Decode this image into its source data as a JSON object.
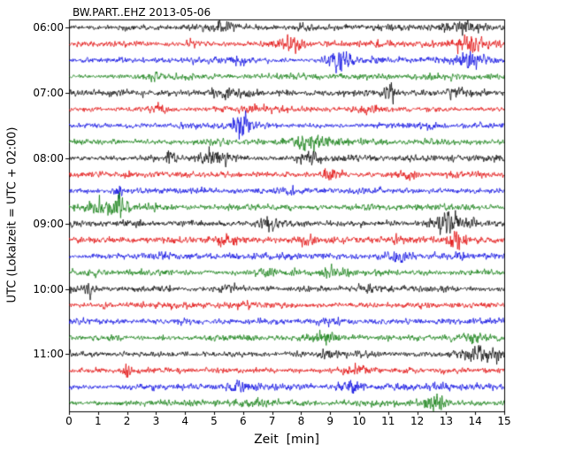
{
  "station_id": "BW.PART..EHZ",
  "date": "2013-05-06",
  "chart_data": {
    "type": "line",
    "subtype": "seismogram-dayplot",
    "title": "BW.PART..EHZ 2013-05-06",
    "xlabel": "Zeit  [min]",
    "ylabel": "UTC (Lokalzeit = UTC + 02:00)",
    "xlim": [
      0,
      15
    ],
    "x_ticks": [
      0,
      1,
      2,
      3,
      4,
      5,
      6,
      7,
      8,
      9,
      10,
      11,
      12,
      13,
      14,
      15
    ],
    "y_tick_labels": [
      "06:00",
      "07:00",
      "08:00",
      "09:00",
      "10:00",
      "11:00"
    ],
    "minutes_per_row": 15,
    "rows_per_hour": 4,
    "grid": false,
    "legend": "none",
    "colors": {
      "black": "#000000",
      "red": "#e00000",
      "blue": "#0000e0",
      "green": "#0a7a0a"
    },
    "traces": [
      {
        "start": "06:00",
        "color": "black",
        "events": [
          {
            "m": 2.1,
            "a": 0.9,
            "w": 0.15
          },
          {
            "m": 5.3,
            "a": 1.6,
            "w": 0.3
          },
          {
            "m": 8.1,
            "a": 1.0,
            "w": 0.25
          },
          {
            "m": 13.6,
            "a": 2.2,
            "w": 0.45
          }
        ]
      },
      {
        "start": "06:15",
        "color": "red",
        "events": [
          {
            "m": 4.2,
            "a": 0.8,
            "w": 0.2
          },
          {
            "m": 7.7,
            "a": 1.8,
            "w": 0.3
          },
          {
            "m": 13.8,
            "a": 2.8,
            "w": 0.35
          }
        ]
      },
      {
        "start": "06:30",
        "color": "blue",
        "events": [
          {
            "m": 6.0,
            "a": 0.8,
            "w": 0.2
          },
          {
            "m": 9.3,
            "a": 3.2,
            "w": 0.3
          },
          {
            "m": 13.9,
            "a": 2.4,
            "w": 0.4
          }
        ]
      },
      {
        "start": "06:45",
        "color": "green",
        "events": [
          {
            "m": 2.9,
            "a": 1.4,
            "w": 0.12
          },
          {
            "m": 8.0,
            "a": 0.6,
            "w": 0.3
          }
        ]
      },
      {
        "start": "07:00",
        "color": "black",
        "events": [
          {
            "m": 5.6,
            "a": 2.0,
            "w": 0.5
          },
          {
            "m": 11.1,
            "a": 3.8,
            "w": 0.12
          },
          {
            "m": 13.4,
            "a": 1.0,
            "w": 0.2
          }
        ]
      },
      {
        "start": "07:15",
        "color": "red",
        "events": [
          {
            "m": 3.1,
            "a": 0.9,
            "w": 0.2
          },
          {
            "m": 6.5,
            "a": 0.8,
            "w": 0.25
          },
          {
            "m": 10.4,
            "a": 1.0,
            "w": 0.3
          }
        ]
      },
      {
        "start": "07:30",
        "color": "blue",
        "events": [
          {
            "m": 5.95,
            "a": 3.4,
            "w": 0.25
          },
          {
            "m": 12.6,
            "a": 0.9,
            "w": 0.2
          }
        ]
      },
      {
        "start": "07:45",
        "color": "green",
        "events": [
          {
            "m": 5.0,
            "a": 0.7,
            "w": 0.3
          },
          {
            "m": 8.3,
            "a": 1.6,
            "w": 0.5
          }
        ]
      },
      {
        "start": "08:00",
        "color": "black",
        "events": [
          {
            "m": 3.5,
            "a": 2.2,
            "w": 0.1
          },
          {
            "m": 5.1,
            "a": 2.6,
            "w": 0.5
          },
          {
            "m": 8.3,
            "a": 1.2,
            "w": 0.25
          }
        ]
      },
      {
        "start": "08:15",
        "color": "red",
        "events": [
          {
            "m": 2.0,
            "a": 0.6,
            "w": 0.2
          },
          {
            "m": 9.1,
            "a": 2.6,
            "w": 0.25
          },
          {
            "m": 11.6,
            "a": 1.2,
            "w": 0.2
          }
        ]
      },
      {
        "start": "08:30",
        "color": "blue",
        "events": [
          {
            "m": 1.7,
            "a": 2.2,
            "w": 0.08
          },
          {
            "m": 7.5,
            "a": 0.5,
            "w": 0.3
          }
        ]
      },
      {
        "start": "08:45",
        "color": "green",
        "events": [
          {
            "m": 1.3,
            "a": 2.8,
            "w": 0.5
          },
          {
            "m": 1.75,
            "a": 3.5,
            "w": 0.1
          },
          {
            "m": 2.9,
            "a": 1.0,
            "w": 0.2
          }
        ]
      },
      {
        "start": "09:00",
        "color": "black",
        "events": [
          {
            "m": 2.3,
            "a": 0.8,
            "w": 0.2
          },
          {
            "m": 6.8,
            "a": 1.6,
            "w": 0.3
          },
          {
            "m": 13.1,
            "a": 2.6,
            "w": 0.45
          }
        ]
      },
      {
        "start": "09:15",
        "color": "red",
        "events": [
          {
            "m": 5.5,
            "a": 1.6,
            "w": 0.25
          },
          {
            "m": 8.0,
            "a": 1.2,
            "w": 0.3
          },
          {
            "m": 11.3,
            "a": 0.7,
            "w": 0.2
          },
          {
            "m": 13.35,
            "a": 3.6,
            "w": 0.2
          }
        ]
      },
      {
        "start": "09:30",
        "color": "blue",
        "events": [
          {
            "m": 3.2,
            "a": 0.6,
            "w": 0.25
          },
          {
            "m": 11.4,
            "a": 1.6,
            "w": 0.3
          },
          {
            "m": 13.5,
            "a": 2.0,
            "w": 0.1
          }
        ]
      },
      {
        "start": "09:45",
        "color": "green",
        "events": [
          {
            "m": 0.9,
            "a": 0.7,
            "w": 0.2
          },
          {
            "m": 6.9,
            "a": 0.9,
            "w": 0.3
          },
          {
            "m": 9.1,
            "a": 0.8,
            "w": 0.3
          }
        ]
      },
      {
        "start": "10:00",
        "color": "black",
        "events": [
          {
            "m": 0.7,
            "a": 1.8,
            "w": 0.12
          },
          {
            "m": 5.5,
            "a": 1.4,
            "w": 0.3
          },
          {
            "m": 10.2,
            "a": 1.5,
            "w": 0.25
          },
          {
            "m": 13.0,
            "a": 0.8,
            "w": 0.3
          }
        ]
      },
      {
        "start": "10:15",
        "color": "red",
        "events": [
          {
            "m": 1.2,
            "a": 2.0,
            "w": 0.08
          },
          {
            "m": 6.0,
            "a": 0.7,
            "w": 0.3
          },
          {
            "m": 12.0,
            "a": 0.7,
            "w": 0.3
          }
        ]
      },
      {
        "start": "10:30",
        "color": "blue",
        "events": [
          {
            "m": 4.0,
            "a": 0.6,
            "w": 0.3
          },
          {
            "m": 9.0,
            "a": 0.7,
            "w": 0.3
          }
        ]
      },
      {
        "start": "10:45",
        "color": "green",
        "events": [
          {
            "m": 1.5,
            "a": 0.7,
            "w": 0.2
          },
          {
            "m": 8.7,
            "a": 1.8,
            "w": 0.4
          },
          {
            "m": 13.9,
            "a": 0.8,
            "w": 0.3
          }
        ]
      },
      {
        "start": "11:00",
        "color": "black",
        "events": [
          {
            "m": 9.0,
            "a": 0.7,
            "w": 0.3
          },
          {
            "m": 14.3,
            "a": 2.8,
            "w": 0.5
          }
        ]
      },
      {
        "start": "11:15",
        "color": "red",
        "events": [
          {
            "m": 2.0,
            "a": 2.4,
            "w": 0.1
          },
          {
            "m": 9.9,
            "a": 1.4,
            "w": 0.3
          },
          {
            "m": 13.0,
            "a": 0.6,
            "w": 0.2
          }
        ]
      },
      {
        "start": "11:30",
        "color": "blue",
        "events": [
          {
            "m": 5.9,
            "a": 1.8,
            "w": 0.4
          },
          {
            "m": 9.7,
            "a": 1.8,
            "w": 0.3
          },
          {
            "m": 12.7,
            "a": 0.8,
            "w": 0.25
          }
        ]
      },
      {
        "start": "11:45",
        "color": "green",
        "events": [
          {
            "m": 6.5,
            "a": 0.6,
            "w": 0.3
          },
          {
            "m": 12.65,
            "a": 3.0,
            "w": 0.3
          }
        ]
      }
    ]
  }
}
